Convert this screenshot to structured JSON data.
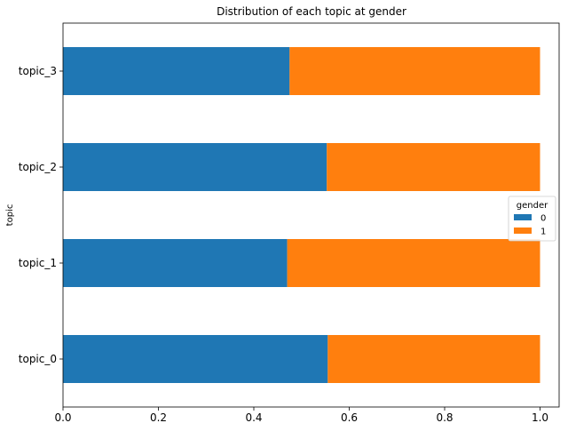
{
  "chart_data": {
    "type": "bar",
    "orientation": "horizontal",
    "stacked": true,
    "title": "Distribution of each topic at gender",
    "xlabel": "",
    "ylabel": "topic",
    "xlim": [
      0.0,
      1.04
    ],
    "xticks": [
      0.0,
      0.2,
      0.4,
      0.6,
      0.8,
      1.0
    ],
    "xtick_labels": [
      "0.0",
      "0.2",
      "0.4",
      "0.6",
      "0.8",
      "1.0"
    ],
    "categories": [
      "topic_0",
      "topic_1",
      "topic_2",
      "topic_3"
    ],
    "series": [
      {
        "name": "0",
        "color": "#1f77b4",
        "values": [
          0.555,
          0.47,
          0.553,
          0.475
        ]
      },
      {
        "name": "1",
        "color": "#ff7f0e",
        "values": [
          0.445,
          0.53,
          0.447,
          0.525
        ]
      }
    ],
    "legend": {
      "title": "gender",
      "position": "center-right"
    },
    "grid": false
  }
}
